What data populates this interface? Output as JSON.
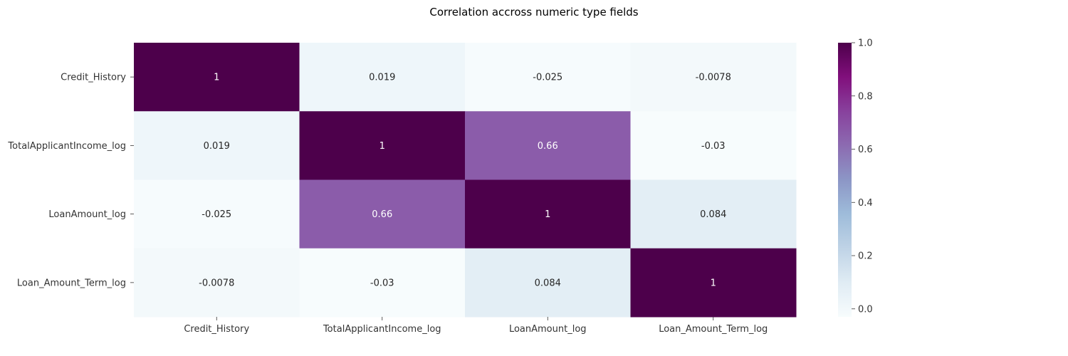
{
  "chart_data": {
    "type": "heatmap",
    "title": "Correlation accross numeric type fields",
    "xlabel": "",
    "ylabel": "",
    "row_labels": [
      "Credit_History",
      "TotalApplicantIncome_log",
      "LoanAmount_log",
      "Loan_Amount_Term_log"
    ],
    "col_labels": [
      "Credit_History",
      "TotalApplicantIncome_log",
      "LoanAmount_log",
      "Loan_Amount_Term_log"
    ],
    "values": [
      [
        1,
        0.019,
        -0.025,
        -0.0078
      ],
      [
        0.019,
        1,
        0.66,
        -0.03
      ],
      [
        -0.025,
        0.66,
        1,
        0.084
      ],
      [
        -0.0078,
        -0.03,
        0.084,
        1
      ]
    ],
    "annotations": [
      [
        "1",
        "0.019",
        "-0.025",
        "-0.0078"
      ],
      [
        "0.019",
        "1",
        "0.66",
        "-0.03"
      ],
      [
        "-0.025",
        "0.66",
        "1",
        "0.084"
      ],
      [
        "-0.0078",
        "-0.03",
        "0.084",
        "1"
      ]
    ],
    "colormap": "BuPu",
    "colorbar": {
      "vmin": -0.03,
      "vmax": 1,
      "ticks": [
        0.0,
        0.2,
        0.4,
        0.6,
        0.8,
        1.0
      ],
      "tick_labels": [
        "0.0",
        "0.2",
        "0.4",
        "0.6",
        "0.8",
        "1.0"
      ]
    },
    "grid": false,
    "legend": "colorbar-right"
  }
}
